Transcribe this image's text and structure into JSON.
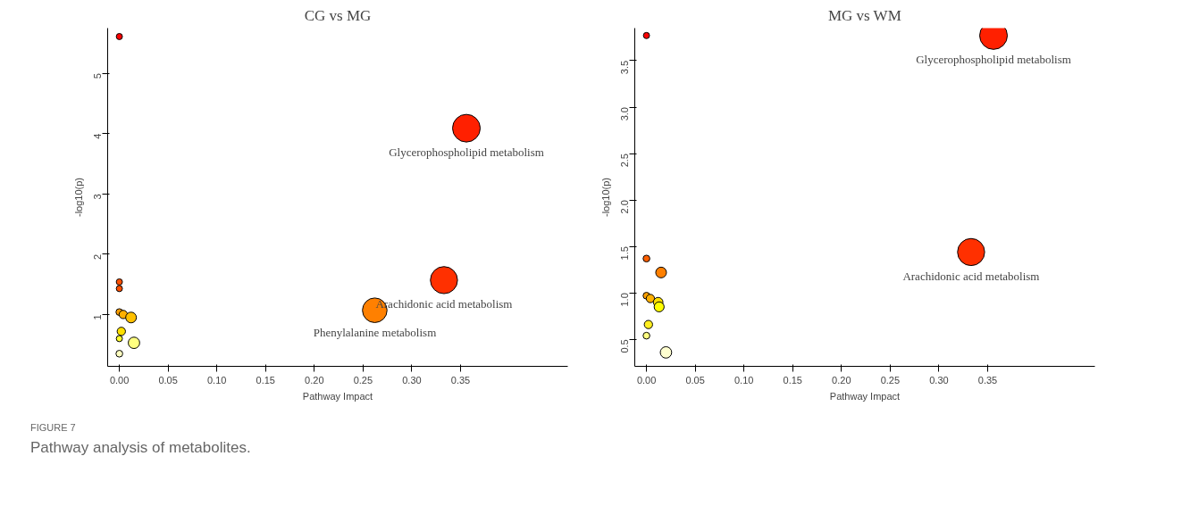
{
  "chart_data": [
    {
      "type": "bubble",
      "title": "CG vs MG",
      "xlabel": "Pathway Impact",
      "ylabel": "-log10(p)",
      "marker": "circle",
      "grid": false,
      "x": [
        0,
        0.356,
        0.333,
        0.262,
        0,
        0,
        0,
        0.004,
        0.012,
        0.002,
        0,
        0.015,
        0
      ],
      "values": [
        5.61,
        4.09,
        1.57,
        1.07,
        1.54,
        1.43,
        1.04,
        1.0,
        0.95,
        0.72,
        0.6,
        0.53,
        0.35
      ],
      "sizes": [
        0.05,
        1,
        0.96,
        0.79,
        0.05,
        0.05,
        0.06,
        0.09,
        0.15,
        0.09,
        0.05,
        0.17,
        0.06
      ],
      "colors": [
        "#ff0000",
        "#ff2000",
        "#ff3000",
        "#ff8000",
        "#ff5000",
        "#ff5000",
        "#ffa000",
        "#ffb000",
        "#ffc000",
        "#ffe000",
        "#ffff30",
        "#ffff80",
        "#ffffc0"
      ],
      "xlim": [
        -0.012,
        0.46
      ],
      "ylim": [
        0.14,
        5.75
      ],
      "xticks": [
        {
          "value": 0,
          "label": "0.00"
        },
        {
          "value": 0.05,
          "label": "0.05"
        },
        {
          "value": 0.1,
          "label": "0.10"
        },
        {
          "value": 0.15,
          "label": "0.15"
        },
        {
          "value": 0.2,
          "label": "0.20"
        },
        {
          "value": 0.25,
          "label": "0.25"
        },
        {
          "value": 0.3,
          "label": "0.30"
        },
        {
          "value": 0.35,
          "label": "0.35"
        }
      ],
      "yticks": [
        1,
        2,
        3,
        4,
        5
      ],
      "annotations": [
        {
          "text": "Glycerophospholipid metabolism",
          "x": 0.356,
          "y": 4.09
        },
        {
          "text": "Arachidonic acid metabolism",
          "x": 0.333,
          "y": 1.57
        },
        {
          "text": "Phenylalanine metabolism",
          "x": 0.262,
          "y": 1.07
        },
        "FIGURE 7",
        "Pathway analysis of metabolites."
      ]
    },
    {
      "type": "bubble",
      "title": "MG vs WM",
      "xlabel": "Pathway Impact",
      "ylabel": "-log10(p)",
      "marker": "circle",
      "grid": false,
      "x": [
        0,
        0.356,
        0.333,
        0,
        0.015,
        0,
        0.004,
        0.012,
        0.013,
        0.002,
        0,
        0.02
      ],
      "values": [
        3.77,
        3.77,
        1.44,
        1.37,
        1.22,
        0.97,
        0.94,
        0.9,
        0.85,
        0.66,
        0.54,
        0.36
      ],
      "sizes": [
        0.05,
        1,
        0.96,
        0.06,
        0.15,
        0.06,
        0.09,
        0.12,
        0.13,
        0.09,
        0.06,
        0.17
      ],
      "colors": [
        "#ff0000",
        "#ff2000",
        "#ff3000",
        "#ff6000",
        "#ff8000",
        "#ffa000",
        "#ffb000",
        "#ffe000",
        "#ffff00",
        "#ffee20",
        "#ffff80",
        "#ffffd0"
      ],
      "xlim": [
        -0.012,
        0.46
      ],
      "ylim": [
        0.21,
        3.85
      ],
      "xticks": [
        {
          "value": 0,
          "label": "0.00"
        },
        {
          "value": 0.05,
          "label": "0.05"
        },
        {
          "value": 0.1,
          "label": "0.10"
        },
        {
          "value": 0.15,
          "label": "0.15"
        },
        {
          "value": 0.2,
          "label": "0.20"
        },
        {
          "value": 0.25,
          "label": "0.25"
        },
        {
          "value": 0.3,
          "label": "0.30"
        },
        {
          "value": 0.35,
          "label": "0.35"
        }
      ],
      "yticks": [
        {
          "value": 0.5,
          "label": "0.5"
        },
        {
          "value": 1,
          "label": "1.0"
        },
        {
          "value": 1.5,
          "label": "1.5"
        },
        {
          "value": 2,
          "label": "2.0"
        },
        {
          "value": 2.5,
          "label": "2.5"
        },
        {
          "value": 3,
          "label": "3.0"
        },
        {
          "value": 3.5,
          "label": "3.5"
        }
      ],
      "annotations": [
        {
          "text": "Glycerophospholipid metabolism",
          "x": 0.356,
          "y": 3.77
        },
        {
          "text": "Arachidonic acid metabolism",
          "x": 0.333,
          "y": 1.44
        }
      ]
    }
  ]
}
